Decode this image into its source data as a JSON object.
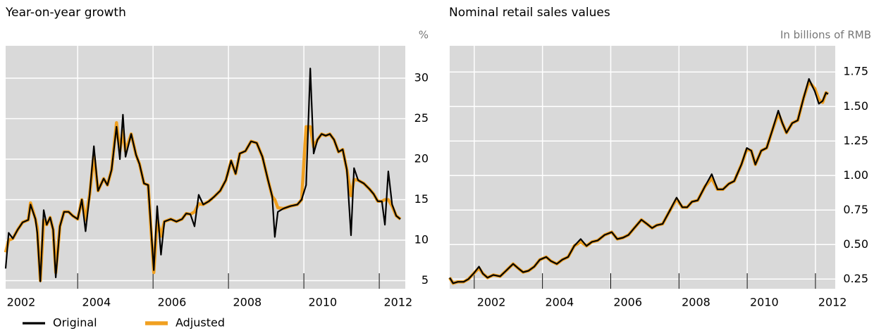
{
  "chart_data": [
    {
      "type": "line",
      "title": "Year-on-year growth",
      "ylabel": "%",
      "x": [
        2002.09,
        2002.17,
        2002.28,
        2002.41,
        2002.54,
        2002.69,
        2002.75,
        2002.88,
        2002.93,
        2003.01,
        2003.1,
        2003.18,
        2003.27,
        2003.35,
        2003.42,
        2003.53,
        2003.64,
        2003.76,
        2003.87,
        2004.0,
        2004.11,
        2004.21,
        2004.32,
        2004.43,
        2004.54,
        2004.69,
        2004.79,
        2004.9,
        2005.03,
        2005.12,
        2005.2,
        2005.27,
        2005.42,
        2005.55,
        2005.64,
        2005.76,
        2005.87,
        2006.02,
        2006.11,
        2006.21,
        2006.3,
        2006.47,
        2006.62,
        2006.77,
        2006.88,
        2006.99,
        2007.1,
        2007.21,
        2007.33,
        2007.48,
        2007.63,
        2007.78,
        2007.93,
        2008.07,
        2008.19,
        2008.3,
        2008.45,
        2008.6,
        2008.75,
        2008.9,
        2009.05,
        2009.16,
        2009.23,
        2009.31,
        2009.46,
        2009.64,
        2009.83,
        2009.94,
        2010.06,
        2010.17,
        2010.26,
        2010.36,
        2010.47,
        2010.58,
        2010.69,
        2010.8,
        2010.92,
        2011.03,
        2011.14,
        2011.25,
        2011.33,
        2011.44,
        2011.59,
        2011.74,
        2011.85,
        2011.96,
        2012.07,
        2012.15,
        2012.24,
        2012.34,
        2012.45,
        2012.56
      ],
      "series": [
        {
          "name": "Original",
          "color": "#000000",
          "values": [
            6.5,
            10.9,
            10.2,
            11.3,
            12.2,
            12.5,
            14.4,
            12.6,
            10.9,
            4.9,
            13.7,
            11.9,
            12.8,
            11.3,
            5.4,
            11.7,
            13.5,
            13.5,
            13.0,
            12.6,
            15.0,
            11.1,
            15.7,
            21.6,
            16.1,
            17.6,
            16.8,
            18.7,
            24.0,
            20.0,
            25.5,
            20.3,
            23.1,
            20.5,
            19.4,
            17.0,
            16.8,
            6.3,
            14.2,
            8.2,
            12.3,
            12.6,
            12.3,
            12.6,
            13.3,
            13.2,
            11.7,
            15.6,
            14.4,
            14.8,
            15.4,
            16.1,
            17.4,
            19.8,
            18.2,
            20.7,
            21.0,
            22.2,
            22.0,
            20.3,
            17.4,
            15.4,
            10.4,
            13.5,
            13.9,
            14.2,
            14.4,
            15.0,
            16.8,
            31.2,
            20.7,
            22.4,
            23.1,
            22.9,
            23.1,
            22.4,
            20.9,
            21.2,
            18.7,
            10.6,
            18.9,
            17.4,
            17.0,
            16.3,
            15.7,
            14.8,
            14.8,
            11.9,
            18.5,
            14.4,
            13.0,
            12.6
          ]
        },
        {
          "name": "Adjusted",
          "color": "#f0a020",
          "values": [
            8.5,
            10.0,
            10.2,
            11.3,
            12.2,
            12.5,
            14.6,
            12.6,
            11.5,
            5.0,
            12.5,
            11.9,
            12.8,
            11.3,
            6.0,
            11.7,
            13.5,
            13.5,
            13.0,
            12.6,
            15.0,
            12.5,
            15.7,
            20.5,
            16.1,
            17.6,
            16.8,
            18.7,
            24.5,
            21.0,
            23.5,
            21.0,
            23.1,
            20.5,
            19.4,
            17.0,
            16.8,
            6.0,
            12.5,
            10.5,
            12.3,
            12.6,
            12.3,
            12.6,
            13.3,
            13.2,
            13.5,
            14.5,
            14.4,
            14.8,
            15.4,
            16.1,
            17.4,
            19.8,
            18.2,
            20.7,
            21.0,
            22.2,
            22.0,
            20.3,
            17.4,
            15.4,
            15.0,
            14.0,
            13.9,
            14.2,
            14.4,
            15.0,
            24.0,
            24.0,
            21.5,
            22.4,
            23.1,
            22.9,
            23.1,
            22.4,
            20.9,
            21.2,
            18.7,
            15.5,
            17.5,
            17.4,
            17.0,
            16.3,
            15.7,
            14.8,
            14.8,
            15.0,
            15.0,
            14.2,
            13.0,
            12.6
          ]
        }
      ],
      "xlim": [
        2002.09,
        2012.69
      ],
      "xticks": [
        2002,
        2004,
        2006,
        2008,
        2010,
        2012
      ],
      "ylim": [
        4,
        34
      ],
      "yticks": [
        5,
        10,
        15,
        20,
        25,
        30
      ],
      "grid": true
    },
    {
      "type": "line",
      "title": "Nominal retail sales values",
      "ylabel": "In billions of RMB",
      "x": [
        2001.28,
        2001.38,
        2001.52,
        2001.69,
        2001.83,
        2001.98,
        2002.14,
        2002.25,
        2002.39,
        2002.56,
        2002.76,
        2002.93,
        2003.14,
        2003.28,
        2003.43,
        2003.59,
        2003.76,
        2003.92,
        2004.11,
        2004.25,
        2004.42,
        2004.58,
        2004.75,
        2004.93,
        2005.12,
        2005.29,
        2005.45,
        2005.62,
        2005.82,
        2006.03,
        2006.19,
        2006.36,
        2006.52,
        2006.69,
        2006.9,
        2007.06,
        2007.21,
        2007.35,
        2007.52,
        2007.72,
        2007.93,
        2008.1,
        2008.24,
        2008.38,
        2008.55,
        2008.76,
        2008.96,
        2009.13,
        2009.29,
        2009.46,
        2009.62,
        2009.83,
        2009.99,
        2010.12,
        2010.24,
        2010.41,
        2010.57,
        2010.74,
        2010.91,
        2011.03,
        2011.15,
        2011.32,
        2011.48,
        2011.65,
        2011.81,
        2011.98,
        2012.1,
        2012.21,
        2012.31,
        2012.37
      ],
      "series": [
        {
          "color": "#000000",
          "values": [
            0.26,
            0.22,
            0.23,
            0.23,
            0.25,
            0.29,
            0.34,
            0.29,
            0.26,
            0.28,
            0.27,
            0.31,
            0.36,
            0.33,
            0.3,
            0.31,
            0.34,
            0.39,
            0.41,
            0.38,
            0.36,
            0.39,
            0.41,
            0.49,
            0.54,
            0.49,
            0.52,
            0.53,
            0.57,
            0.59,
            0.54,
            0.55,
            0.57,
            0.62,
            0.68,
            0.65,
            0.62,
            0.64,
            0.65,
            0.74,
            0.84,
            0.77,
            0.77,
            0.81,
            0.82,
            0.92,
            1.01,
            0.9,
            0.9,
            0.94,
            0.96,
            1.08,
            1.2,
            1.18,
            1.08,
            1.18,
            1.2,
            1.33,
            1.47,
            1.38,
            1.31,
            1.38,
            1.4,
            1.56,
            1.7,
            1.61,
            1.52,
            1.54,
            1.6,
            1.59
          ]
        },
        {
          "color": "#f0a020",
          "values": [
            0.26,
            0.22,
            0.23,
            0.23,
            0.25,
            0.29,
            0.33,
            0.29,
            0.26,
            0.28,
            0.27,
            0.31,
            0.36,
            0.33,
            0.3,
            0.31,
            0.34,
            0.39,
            0.41,
            0.38,
            0.36,
            0.39,
            0.41,
            0.49,
            0.52,
            0.49,
            0.52,
            0.53,
            0.57,
            0.59,
            0.54,
            0.55,
            0.57,
            0.62,
            0.68,
            0.65,
            0.62,
            0.64,
            0.65,
            0.74,
            0.83,
            0.77,
            0.77,
            0.81,
            0.82,
            0.92,
            0.98,
            0.9,
            0.9,
            0.94,
            0.96,
            1.08,
            1.19,
            1.18,
            1.08,
            1.18,
            1.2,
            1.33,
            1.45,
            1.38,
            1.31,
            1.38,
            1.4,
            1.56,
            1.68,
            1.63,
            1.55,
            1.53,
            1.6,
            1.59
          ]
        }
      ],
      "xlim": [
        2001.28,
        2012.58
      ],
      "xticks": [
        2002,
        2004,
        2006,
        2008,
        2010,
        2012
      ],
      "ylim": [
        0.18,
        1.94
      ],
      "yticks": [
        0.25,
        {
          "value": 0.5,
          "label": "0.50"
        },
        0.75,
        {
          "value": 1,
          "label": "1.00"
        },
        1.25,
        {
          "value": 1.5,
          "label": "1.50"
        },
        1.75
      ],
      "grid": true
    }
  ]
}
